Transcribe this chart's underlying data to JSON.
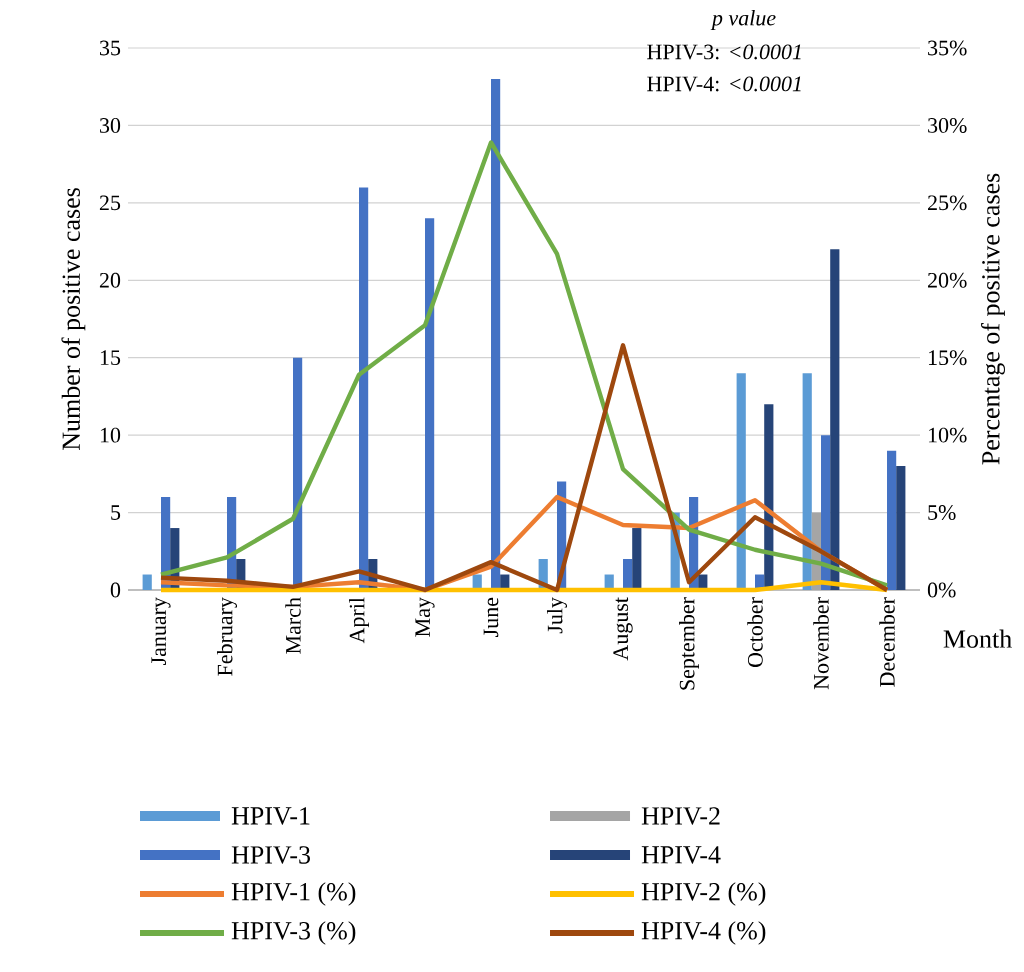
{
  "chart_data": {
    "type": "bar",
    "xlabel": "Month",
    "ylabel": "Number of positive cases",
    "y2label": "Percentage of positive cases",
    "annotations": [
      "p value",
      "HPIV-3: *<0.0001*",
      "HPIV-4: *<0.0001*"
    ],
    "categories": [
      "January",
      "February",
      "March",
      "April",
      "May",
      "June",
      "July",
      "August",
      "September",
      "October",
      "November",
      "December"
    ],
    "series": [
      {
        "name": "HPIV-1",
        "color": "#5b9bd5",
        "values": [
          1,
          0,
          0,
          0,
          0,
          1,
          2,
          1,
          5,
          14,
          14,
          0
        ]
      },
      {
        "name": "HPIV-2",
        "color": "#a5a5a5",
        "values": [
          0,
          0,
          0,
          0,
          0,
          0,
          0,
          0,
          0,
          0,
          5,
          0
        ]
      },
      {
        "name": "HPIV-3",
        "color": "#4472c4",
        "values": [
          6,
          6,
          15,
          26,
          24,
          33,
          7,
          2,
          6,
          1,
          10,
          9
        ]
      },
      {
        "name": "HPIV-4",
        "color": "#264478",
        "values": [
          4,
          2,
          0,
          2,
          0,
          1,
          0,
          4,
          1,
          12,
          22,
          8
        ]
      },
      {
        "name": "HPIV-1 (%)",
        "type": "line",
        "axis": "y2",
        "color": "#ed7d31",
        "values": [
          0.5,
          0.3,
          0.2,
          0.5,
          0,
          1.5,
          6,
          4.2,
          4,
          5.8,
          2.5,
          0
        ]
      },
      {
        "name": "HPIV-2 (%)",
        "type": "line",
        "axis": "y2",
        "color": "#ffc000",
        "values": [
          0,
          0,
          0,
          0,
          0,
          0,
          0,
          0,
          0,
          0,
          0.5,
          0
        ]
      },
      {
        "name": "HPIV-3 (%)",
        "type": "line",
        "axis": "y2",
        "color": "#70ad47",
        "values": [
          1,
          2.1,
          4.6,
          13.9,
          17.1,
          28.9,
          21.7,
          7.8,
          3.9,
          2.6,
          1.7,
          0.3
        ]
      },
      {
        "name": "HPIV-4 (%)",
        "type": "line",
        "axis": "y2",
        "color": "#9e480e",
        "values": [
          0.8,
          0.6,
          0.2,
          1.2,
          0,
          1.8,
          0,
          15.8,
          0.5,
          4.7,
          2.5,
          0
        ]
      }
    ],
    "ylim": [
      0,
      35
    ],
    "yticks": [
      0,
      5,
      10,
      15,
      20,
      25,
      30,
      35
    ],
    "y2lim": [
      0,
      35
    ],
    "y2ticks": [
      {
        "value": 0,
        "label": "0%"
      },
      {
        "value": 5,
        "label": "5%"
      },
      {
        "value": 10,
        "label": "10%"
      },
      {
        "value": 15,
        "label": "15%"
      },
      {
        "value": 20,
        "label": "20%"
      },
      {
        "value": 25,
        "label": "25%"
      },
      {
        "value": 30,
        "label": "30%"
      },
      {
        "value": 35,
        "label": "35%"
      }
    ],
    "grid": "y",
    "legend": "bottom"
  }
}
